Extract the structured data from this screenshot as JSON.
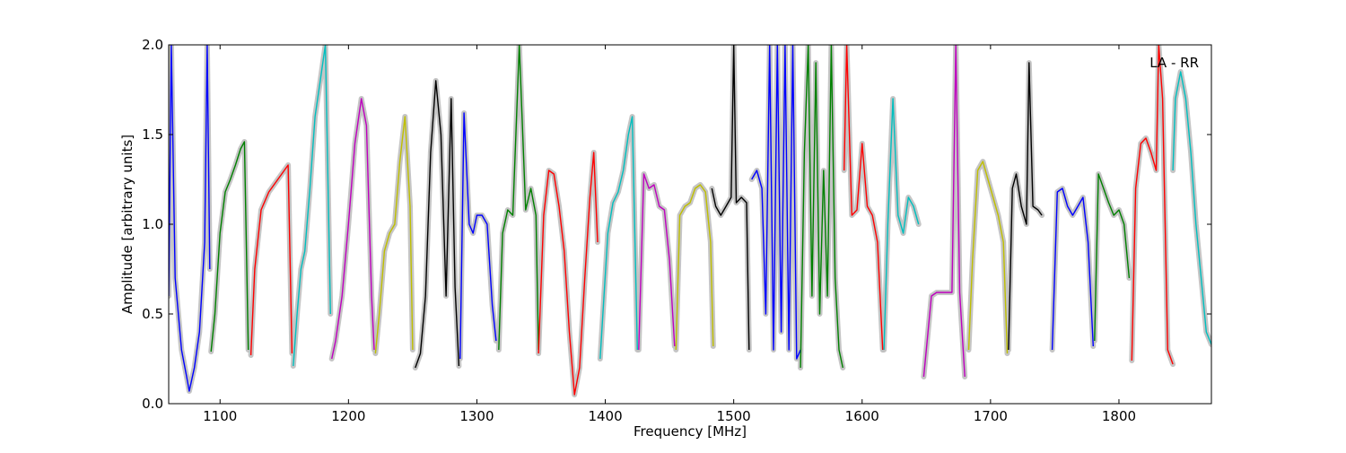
{
  "chart_data": {
    "type": "line",
    "xlabel": "Frequency [MHz]",
    "ylabel": "Amplitude [arbitrary units]",
    "xlim": [
      1060,
      1872
    ],
    "ylim": [
      0.0,
      2.0
    ],
    "xticks": [
      1100,
      1200,
      1300,
      1400,
      1500,
      1600,
      1700,
      1800
    ],
    "yticks": [
      0.0,
      0.5,
      1.0,
      1.5,
      2.0
    ],
    "xtick_labels": [
      "1100",
      "1200",
      "1300",
      "1400",
      "1500",
      "1600",
      "1700",
      "1800"
    ],
    "ytick_labels": [
      "0.0",
      "0.5",
      "1.0",
      "1.5",
      "2.0"
    ],
    "grid": false,
    "annotation": "LA - RR",
    "background_color": "#bfbfbf",
    "series": [
      {
        "color": "#0000ff",
        "x": [
          1060,
          1062,
          1065,
          1070,
          1074,
          1076,
          1080,
          1084,
          1088,
          1090,
          1092
        ],
        "y": [
          0.6,
          2.0,
          0.7,
          0.3,
          0.15,
          0.07,
          0.2,
          0.4,
          0.9,
          2.0,
          0.75
        ]
      },
      {
        "color": "#008000",
        "x": [
          1093,
          1096,
          1100,
          1104,
          1108,
          1112,
          1116,
          1119,
          1122
        ],
        "y": [
          0.29,
          0.5,
          0.95,
          1.18,
          1.25,
          1.33,
          1.42,
          1.46,
          0.3
        ]
      },
      {
        "color": "#ff0000",
        "x": [
          1124,
          1127,
          1132,
          1138,
          1144,
          1150,
          1153,
          1156
        ],
        "y": [
          0.27,
          0.75,
          1.08,
          1.18,
          1.24,
          1.3,
          1.33,
          0.28
        ]
      },
      {
        "color": "#00bfbf",
        "x": [
          1157,
          1160,
          1163,
          1166,
          1170,
          1174,
          1178,
          1182,
          1186
        ],
        "y": [
          0.21,
          0.5,
          0.75,
          0.85,
          1.2,
          1.6,
          1.8,
          2.0,
          0.5
        ]
      },
      {
        "color": "#bf00bf",
        "x": [
          1187,
          1190,
          1195,
          1200,
          1205,
          1210,
          1214,
          1218,
          1220
        ],
        "y": [
          0.25,
          0.35,
          0.6,
          1.0,
          1.45,
          1.7,
          1.55,
          0.6,
          0.3
        ]
      },
      {
        "color": "#bfbf00",
        "x": [
          1221,
          1224,
          1228,
          1232,
          1236,
          1240,
          1244,
          1248,
          1250
        ],
        "y": [
          0.28,
          0.5,
          0.85,
          0.95,
          1.0,
          1.35,
          1.6,
          1.1,
          0.3
        ]
      },
      {
        "color": "#000000",
        "x": [
          1252,
          1256,
          1260,
          1264,
          1268,
          1272,
          1276,
          1280,
          1283,
          1286
        ],
        "y": [
          0.2,
          0.28,
          0.6,
          1.4,
          1.8,
          1.5,
          0.6,
          1.7,
          0.65,
          0.21
        ]
      },
      {
        "color": "#0000ff",
        "x": [
          1287,
          1290,
          1294,
          1297,
          1300,
          1304,
          1308,
          1312,
          1315
        ],
        "y": [
          0.25,
          1.62,
          1.0,
          0.95,
          1.05,
          1.05,
          1.0,
          0.55,
          0.35
        ]
      },
      {
        "color": "#008000",
        "x": [
          1317,
          1320,
          1324,
          1328,
          1333,
          1338,
          1342,
          1346,
          1348
        ],
        "y": [
          0.3,
          0.95,
          1.08,
          1.05,
          2.0,
          1.08,
          1.2,
          1.05,
          0.3
        ]
      },
      {
        "color": "#ff0000",
        "x": [
          1348,
          1352,
          1356,
          1360,
          1364,
          1368,
          1372,
          1376,
          1380,
          1384,
          1388,
          1391,
          1394
        ],
        "y": [
          0.28,
          1.05,
          1.3,
          1.28,
          1.1,
          0.85,
          0.4,
          0.05,
          0.2,
          0.7,
          1.15,
          1.4,
          0.9
        ]
      },
      {
        "color": "#00bfbf",
        "x": [
          1396,
          1399,
          1402,
          1406,
          1410,
          1414,
          1418,
          1421,
          1425
        ],
        "y": [
          0.25,
          0.6,
          0.95,
          1.12,
          1.18,
          1.3,
          1.5,
          1.6,
          0.3
        ]
      },
      {
        "color": "#bf00bf",
        "x": [
          1426,
          1430,
          1434,
          1438,
          1442,
          1446,
          1450,
          1454
        ],
        "y": [
          0.3,
          1.28,
          1.2,
          1.22,
          1.1,
          1.08,
          0.8,
          0.32
        ]
      },
      {
        "color": "#bfbf00",
        "x": [
          1455,
          1458,
          1462,
          1466,
          1470,
          1474,
          1478,
          1482,
          1484
        ],
        "y": [
          0.3,
          1.05,
          1.1,
          1.12,
          1.2,
          1.22,
          1.18,
          0.9,
          0.32
        ]
      },
      {
        "color": "#000000",
        "x": [
          1483,
          1486,
          1490,
          1494,
          1498,
          1500,
          1502,
          1506,
          1510,
          1512
        ],
        "y": [
          1.2,
          1.1,
          1.05,
          1.1,
          1.15,
          2.0,
          1.12,
          1.15,
          1.12,
          0.3
        ]
      },
      {
        "color": "#0000ff",
        "x": [
          1514,
          1518,
          1522,
          1525,
          1528,
          1531,
          1534,
          1537,
          1540,
          1543,
          1546,
          1549,
          1552
        ],
        "y": [
          1.25,
          1.3,
          1.2,
          0.5,
          2.0,
          0.3,
          2.0,
          0.4,
          2.0,
          0.3,
          2.0,
          0.25,
          0.3
        ]
      },
      {
        "color": "#008000",
        "x": [
          1552,
          1555,
          1558,
          1561,
          1564,
          1567,
          1570,
          1573,
          1576,
          1579,
          1582,
          1585
        ],
        "y": [
          0.2,
          1.4,
          2.0,
          0.6,
          1.9,
          0.5,
          1.3,
          0.6,
          2.0,
          0.7,
          0.3,
          0.2
        ]
      },
      {
        "color": "#ff0000",
        "x": [
          1586,
          1588,
          1592,
          1596,
          1600,
          1604,
          1608,
          1612,
          1616
        ],
        "y": [
          1.3,
          2.0,
          1.05,
          1.08,
          1.45,
          1.1,
          1.05,
          0.9,
          0.3
        ]
      },
      {
        "color": "#00bfbf",
        "x": [
          1617,
          1620,
          1624,
          1628,
          1632,
          1636,
          1640,
          1644
        ],
        "y": [
          0.3,
          1.0,
          1.7,
          1.05,
          0.95,
          1.15,
          1.1,
          1.0
        ]
      },
      {
        "color": "#bf00bf",
        "x": [
          1648,
          1650,
          1654,
          1658,
          1662,
          1666,
          1670,
          1673,
          1676,
          1680
        ],
        "y": [
          0.15,
          0.3,
          0.6,
          0.62,
          0.62,
          0.62,
          0.62,
          2.0,
          0.62,
          0.15
        ]
      },
      {
        "color": "#bfbf00",
        "x": [
          1683,
          1686,
          1690,
          1694,
          1698,
          1702,
          1706,
          1710,
          1713
        ],
        "y": [
          0.3,
          0.8,
          1.3,
          1.35,
          1.25,
          1.15,
          1.05,
          0.9,
          0.28
        ]
      },
      {
        "color": "#000000",
        "x": [
          1714,
          1717,
          1720,
          1724,
          1728,
          1730,
          1733,
          1737,
          1740
        ],
        "y": [
          0.3,
          1.2,
          1.28,
          1.1,
          1.0,
          1.9,
          1.1,
          1.08,
          1.05
        ]
      },
      {
        "color": "#0000ff",
        "x": [
          1748,
          1752,
          1756,
          1760,
          1764,
          1768,
          1772,
          1776,
          1780
        ],
        "y": [
          0.3,
          1.18,
          1.2,
          1.1,
          1.05,
          1.1,
          1.15,
          0.9,
          0.32
        ]
      },
      {
        "color": "#008000",
        "x": [
          1781,
          1784,
          1788,
          1792,
          1796,
          1800,
          1804,
          1808
        ],
        "y": [
          0.35,
          1.28,
          1.2,
          1.12,
          1.05,
          1.08,
          1.0,
          0.7
        ]
      },
      {
        "color": "#ff0000",
        "x": [
          1810,
          1813,
          1817,
          1821,
          1825,
          1829,
          1831,
          1834,
          1838,
          1842
        ],
        "y": [
          0.24,
          1.2,
          1.45,
          1.48,
          1.4,
          1.3,
          2.0,
          1.7,
          0.3,
          0.22
        ]
      },
      {
        "color": "#00bfbf",
        "x": [
          1842,
          1844,
          1848,
          1852,
          1856,
          1860,
          1864,
          1868,
          1872
        ],
        "y": [
          1.3,
          1.7,
          1.85,
          1.7,
          1.4,
          1.0,
          0.7,
          0.4,
          0.33
        ]
      }
    ]
  }
}
